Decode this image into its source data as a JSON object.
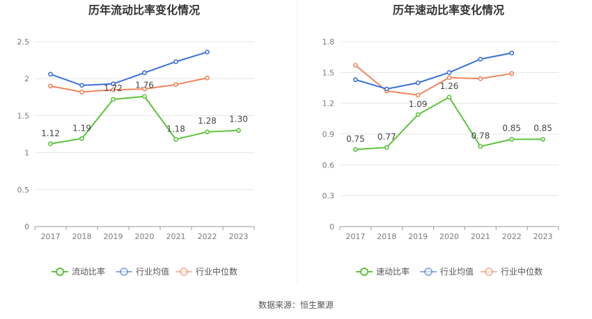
{
  "source_text": "数据来源：恒生聚源",
  "chart_data": [
    {
      "type": "line",
      "title": "历年流动比率变化情况",
      "categories": [
        "2017",
        "2018",
        "2019",
        "2020",
        "2021",
        "2022",
        "2023"
      ],
      "ylim": [
        0,
        2.5
      ],
      "yticks": [
        "0",
        "0.5",
        "1",
        "1.5",
        "2",
        "2.5"
      ],
      "grid": true,
      "legend_position": "bottom",
      "series": [
        {
          "name": "流动比率",
          "color": "#5ac43a",
          "values": [
            1.12,
            1.19,
            1.72,
            1.76,
            1.18,
            1.28,
            1.3
          ],
          "labels": [
            "1.12",
            "1.19",
            "1.72",
            "1.76",
            "1.18",
            "1.28",
            "1.30"
          ]
        },
        {
          "name": "行业均值",
          "color": "#3a6fd8",
          "values": [
            2.06,
            1.91,
            1.93,
            2.08,
            2.23,
            2.36,
            null
          ]
        },
        {
          "name": "行业中位数",
          "color": "#f0845a",
          "values": [
            1.9,
            1.82,
            1.85,
            1.86,
            1.92,
            2.01,
            null
          ]
        }
      ]
    },
    {
      "type": "line",
      "title": "历年速动比率变化情况",
      "categories": [
        "2017",
        "2018",
        "2019",
        "2020",
        "2021",
        "2022",
        "2023"
      ],
      "ylim": [
        0,
        1.8
      ],
      "yticks": [
        "0",
        "0.3",
        "0.6",
        "0.9",
        "1.2",
        "1.5",
        "1.8"
      ],
      "grid": true,
      "legend_position": "bottom",
      "series": [
        {
          "name": "速动比率",
          "color": "#5ac43a",
          "values": [
            0.75,
            0.77,
            1.09,
            1.26,
            0.78,
            0.85,
            0.85
          ],
          "labels": [
            "0.75",
            "0.77",
            "1.09",
            "1.26",
            "0.78",
            "0.85",
            "0.85"
          ]
        },
        {
          "name": "行业均值",
          "color": "#3a6fd8",
          "values": [
            1.43,
            1.34,
            1.4,
            1.5,
            1.63,
            1.69,
            null
          ]
        },
        {
          "name": "行业中位数",
          "color": "#f0845a",
          "values": [
            1.57,
            1.32,
            1.28,
            1.45,
            1.44,
            1.49,
            null
          ]
        }
      ]
    }
  ]
}
